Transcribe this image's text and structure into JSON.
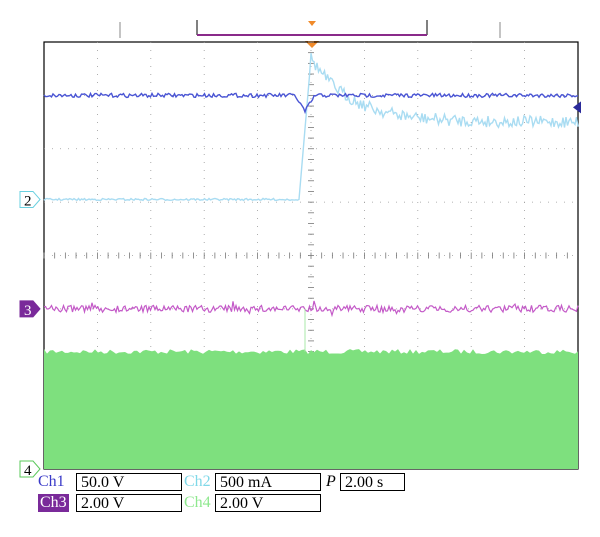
{
  "chart_data": {
    "type": "line",
    "title": "",
    "xlabel": "",
    "ylabel": "",
    "grid": true,
    "divisions": {
      "x": 10,
      "y": 8
    },
    "series": [
      {
        "channel": "Ch1",
        "color": "#4a55d4",
        "level_div": 1.0,
        "event": "brief dip at trigger then returns to level",
        "dip_div": 0.3
      },
      {
        "channel": "Ch2",
        "color": "#a9dcf2",
        "pre_level_div": 2.95,
        "peak_div": 0.3,
        "post_level_div": 1.5,
        "event": "step increase at trigger with overshoot, settles higher"
      },
      {
        "channel": "Ch3",
        "color": "#c45ac8",
        "level_div": 5.0
      },
      {
        "channel": "Ch4",
        "color": "#7ee07e",
        "band_top_div": 5.8,
        "band_bottom_div": 8.0,
        "event": "dense switching band"
      }
    ],
    "markers": {
      "ch2_ground": "2",
      "ch3_ground": "3",
      "ch4_ground": "4"
    },
    "trigger_time_fraction": 0.5
  },
  "readouts": {
    "ch1": {
      "label": "Ch1",
      "value": "50.0 V"
    },
    "ch2": {
      "label": "Ch2",
      "value": "500 mA"
    },
    "ch3": {
      "label": "Ch3",
      "value": "2.00 V"
    },
    "ch4": {
      "label": "Ch4",
      "value": "2.00 V"
    },
    "timebase": {
      "label": "P",
      "value": "2.00 s"
    }
  }
}
